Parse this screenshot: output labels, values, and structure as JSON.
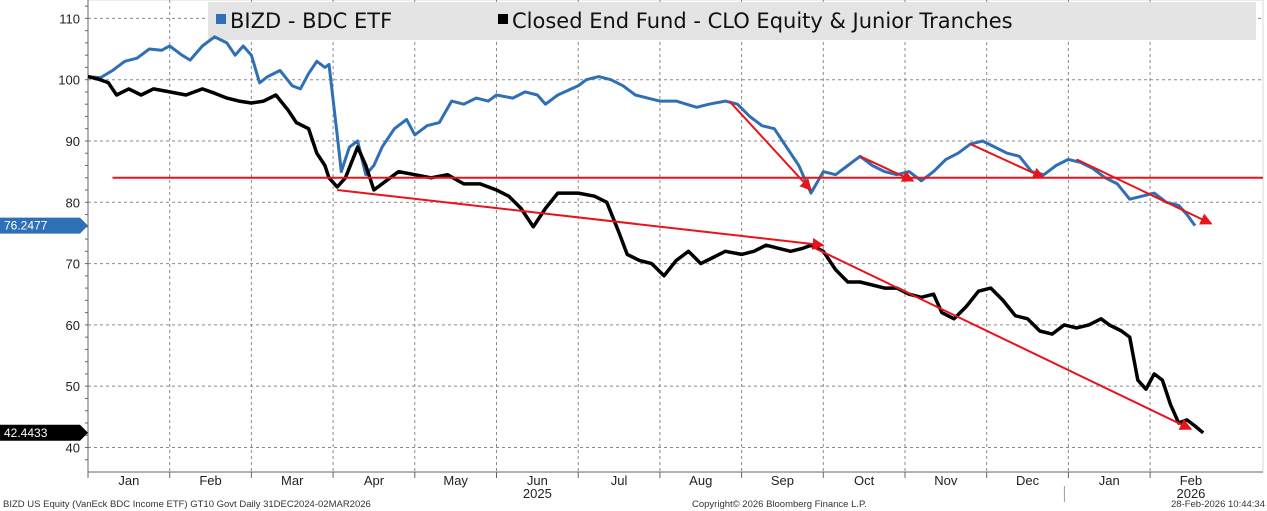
{
  "chart_data": {
    "type": "line",
    "y_range": [
      36,
      113
    ],
    "y_ticks": [
      "40",
      "50",
      "60",
      "70",
      "80",
      "90",
      "100",
      "110"
    ],
    "month_labels": [
      "Jan",
      "Feb",
      "Mar",
      "Apr",
      "May",
      "Jun",
      "Jul",
      "Aug",
      "Sep",
      "Oct",
      "Nov",
      "Dec",
      "Jan",
      "Feb"
    ],
    "year_labels": [
      {
        "text": "2025",
        "month_index": 5.5
      },
      {
        "text": "2026",
        "month_index": 13.5
      }
    ],
    "grid": true,
    "legend": {
      "placement": "top",
      "items": [
        {
          "label": "BIZD - BDC ETF",
          "color": "#2f6fb5"
        },
        {
          "label": "Closed End Fund - CLO Equity & Junior Tranches",
          "color": "#000000"
        }
      ]
    },
    "series": [
      {
        "name": "BIZD - BDC ETF",
        "color": "#2f6fb5",
        "last_value_label": "76.2477",
        "points": [
          [
            0,
            100.5
          ],
          [
            0.15,
            100.3
          ],
          [
            0.3,
            101.5
          ],
          [
            0.45,
            103
          ],
          [
            0.6,
            103.5
          ],
          [
            0.75,
            105
          ],
          [
            0.9,
            104.8
          ],
          [
            1.0,
            105.5
          ],
          [
            1.15,
            104
          ],
          [
            1.25,
            103.2
          ],
          [
            1.4,
            105.5
          ],
          [
            1.55,
            107
          ],
          [
            1.7,
            106
          ],
          [
            1.8,
            104
          ],
          [
            1.9,
            105.5
          ],
          [
            2.0,
            104
          ],
          [
            2.1,
            99.5
          ],
          [
            2.2,
            100.5
          ],
          [
            2.35,
            101.5
          ],
          [
            2.5,
            99
          ],
          [
            2.6,
            98.5
          ],
          [
            2.7,
            101
          ],
          [
            2.8,
            103
          ],
          [
            2.9,
            102
          ],
          [
            2.95,
            102.5
          ],
          [
            3.05,
            91
          ],
          [
            3.1,
            85
          ],
          [
            3.2,
            89
          ],
          [
            3.3,
            90
          ],
          [
            3.4,
            84.5
          ],
          [
            3.5,
            86
          ],
          [
            3.6,
            89
          ],
          [
            3.75,
            92
          ],
          [
            3.9,
            93.5
          ],
          [
            4.0,
            91
          ],
          [
            4.15,
            92.5
          ],
          [
            4.3,
            93
          ],
          [
            4.45,
            96.5
          ],
          [
            4.6,
            96
          ],
          [
            4.75,
            97
          ],
          [
            4.9,
            96.5
          ],
          [
            5.0,
            97.5
          ],
          [
            5.2,
            97
          ],
          [
            5.35,
            98
          ],
          [
            5.5,
            97.5
          ],
          [
            5.6,
            96
          ],
          [
            5.75,
            97.5
          ],
          [
            6.0,
            99
          ],
          [
            6.1,
            100
          ],
          [
            6.25,
            100.5
          ],
          [
            6.4,
            100
          ],
          [
            6.55,
            99
          ],
          [
            6.7,
            97.5
          ],
          [
            6.85,
            97
          ],
          [
            7.0,
            96.5
          ],
          [
            7.2,
            96.5
          ],
          [
            7.45,
            95.5
          ],
          [
            7.6,
            96
          ],
          [
            7.8,
            96.5
          ],
          [
            7.95,
            96
          ],
          [
            8.1,
            94
          ],
          [
            8.25,
            92.5
          ],
          [
            8.4,
            92
          ],
          [
            8.55,
            89
          ],
          [
            8.7,
            86
          ],
          [
            8.85,
            81.5
          ],
          [
            9.0,
            85
          ],
          [
            9.15,
            84.5
          ],
          [
            9.3,
            86
          ],
          [
            9.45,
            87.5
          ],
          [
            9.6,
            86
          ],
          [
            9.75,
            85
          ],
          [
            9.9,
            84.5
          ],
          [
            10.05,
            85
          ],
          [
            10.2,
            83.5
          ],
          [
            10.35,
            85
          ],
          [
            10.5,
            87
          ],
          [
            10.65,
            88
          ],
          [
            10.8,
            89.5
          ],
          [
            10.95,
            90
          ],
          [
            11.1,
            89
          ],
          [
            11.25,
            88
          ],
          [
            11.4,
            87.5
          ],
          [
            11.55,
            85
          ],
          [
            11.7,
            84.5
          ],
          [
            11.85,
            86
          ],
          [
            12.0,
            87
          ],
          [
            12.15,
            86.5
          ],
          [
            12.3,
            85.5
          ],
          [
            12.45,
            84
          ],
          [
            12.6,
            83
          ],
          [
            12.75,
            80.5
          ],
          [
            12.9,
            81
          ],
          [
            13.05,
            81.5
          ],
          [
            13.2,
            80
          ],
          [
            13.35,
            79.5
          ],
          [
            13.45,
            78
          ],
          [
            13.55,
            76.2
          ]
        ]
      },
      {
        "name": "Closed End Fund - CLO Equity & Junior Tranches",
        "color": "#000000",
        "last_value_label": "42.4433",
        "points": [
          [
            0,
            100.5
          ],
          [
            0.15,
            100
          ],
          [
            0.25,
            99.5
          ],
          [
            0.35,
            97.5
          ],
          [
            0.5,
            98.5
          ],
          [
            0.65,
            97.5
          ],
          [
            0.8,
            98.5
          ],
          [
            1.0,
            98
          ],
          [
            1.2,
            97.5
          ],
          [
            1.4,
            98.5
          ],
          [
            1.55,
            97.8
          ],
          [
            1.7,
            97
          ],
          [
            1.85,
            96.5
          ],
          [
            2.0,
            96.2
          ],
          [
            2.15,
            96.5
          ],
          [
            2.3,
            97.5
          ],
          [
            2.45,
            95
          ],
          [
            2.55,
            93
          ],
          [
            2.7,
            92
          ],
          [
            2.8,
            88
          ],
          [
            2.9,
            86
          ],
          [
            2.95,
            84
          ],
          [
            3.05,
            82.5
          ],
          [
            3.15,
            84
          ],
          [
            3.3,
            89
          ],
          [
            3.4,
            86
          ],
          [
            3.5,
            82
          ],
          [
            3.65,
            83.5
          ],
          [
            3.8,
            85
          ],
          [
            4.0,
            84.5
          ],
          [
            4.2,
            84
          ],
          [
            4.4,
            84.5
          ],
          [
            4.6,
            83
          ],
          [
            4.8,
            83
          ],
          [
            5.0,
            82
          ],
          [
            5.15,
            81
          ],
          [
            5.3,
            79
          ],
          [
            5.45,
            76
          ],
          [
            5.6,
            79
          ],
          [
            5.75,
            81.5
          ],
          [
            6.0,
            81.5
          ],
          [
            6.2,
            81
          ],
          [
            6.35,
            80
          ],
          [
            6.5,
            75
          ],
          [
            6.6,
            71.5
          ],
          [
            6.75,
            70.5
          ],
          [
            6.9,
            70
          ],
          [
            7.05,
            68
          ],
          [
            7.2,
            70.5
          ],
          [
            7.35,
            72
          ],
          [
            7.5,
            70
          ],
          [
            7.65,
            71
          ],
          [
            7.8,
            72
          ],
          [
            8.0,
            71.5
          ],
          [
            8.15,
            72
          ],
          [
            8.3,
            73
          ],
          [
            8.45,
            72.5
          ],
          [
            8.6,
            72
          ],
          [
            8.75,
            72.5
          ],
          [
            8.85,
            73
          ],
          [
            9.0,
            72
          ],
          [
            9.15,
            69
          ],
          [
            9.3,
            67
          ],
          [
            9.45,
            67
          ],
          [
            9.6,
            66.5
          ],
          [
            9.75,
            66
          ],
          [
            9.9,
            66
          ],
          [
            10.05,
            65
          ],
          [
            10.2,
            64.5
          ],
          [
            10.35,
            65
          ],
          [
            10.45,
            62
          ],
          [
            10.6,
            61
          ],
          [
            10.75,
            63
          ],
          [
            10.9,
            65.5
          ],
          [
            11.05,
            66
          ],
          [
            11.2,
            64
          ],
          [
            11.35,
            61.5
          ],
          [
            11.5,
            61
          ],
          [
            11.65,
            59
          ],
          [
            11.8,
            58.5
          ],
          [
            11.95,
            60
          ],
          [
            12.1,
            59.5
          ],
          [
            12.25,
            60
          ],
          [
            12.4,
            61
          ],
          [
            12.5,
            60
          ],
          [
            12.65,
            59
          ],
          [
            12.75,
            58
          ],
          [
            12.85,
            51
          ],
          [
            12.95,
            49.5
          ],
          [
            13.05,
            52
          ],
          [
            13.15,
            51
          ],
          [
            13.25,
            47
          ],
          [
            13.35,
            44
          ],
          [
            13.45,
            44.5
          ],
          [
            13.55,
            43.5
          ],
          [
            13.65,
            42.4
          ]
        ]
      }
    ],
    "annotations": {
      "horizontal_line": {
        "y": 84,
        "color": "#e8141b"
      },
      "arrows": [
        {
          "from": [
            3.05,
            82
          ],
          "to": [
            9.0,
            73
          ],
          "color": "#e8141b"
        },
        {
          "from": [
            8.9,
            72.5
          ],
          "to": [
            13.5,
            43
          ],
          "color": "#e8141b"
        },
        {
          "from": [
            7.85,
            96.5
          ],
          "to": [
            8.85,
            82
          ],
          "color": "#e8141b"
        },
        {
          "from": [
            9.45,
            87.5
          ],
          "to": [
            10.1,
            83.5
          ],
          "color": "#e8141b"
        },
        {
          "from": [
            10.8,
            89.5
          ],
          "to": [
            11.7,
            84
          ],
          "color": "#e8141b"
        },
        {
          "from": [
            12.1,
            87
          ],
          "to": [
            13.75,
            76.5
          ],
          "color": "#e8141b"
        }
      ]
    }
  },
  "footer": {
    "left": "BIZD US Equity (VanEck BDC Income ETF) GT10  Govt Daily 31DEC2024-02MAR2026",
    "center": "Copyright© 2026 Bloomberg Finance L.P.",
    "right": "28-Feb-2026 10:44:34"
  }
}
